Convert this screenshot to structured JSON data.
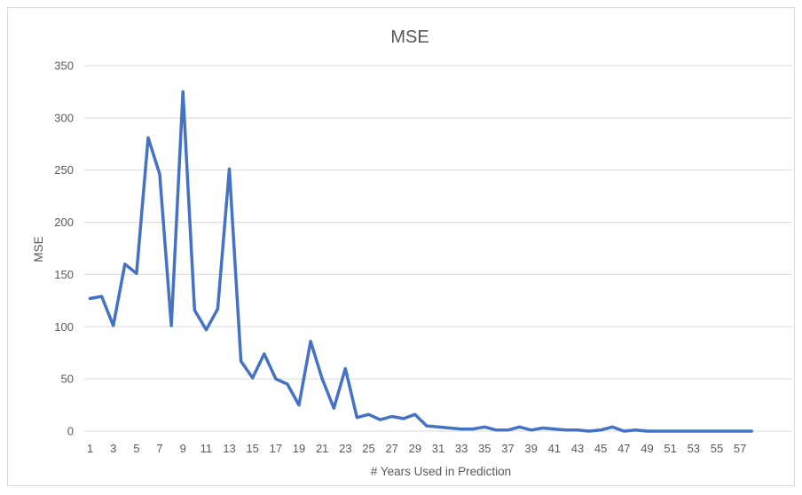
{
  "chart_data": {
    "type": "line",
    "title": "MSE",
    "xlabel": "# Years Used in Prediction",
    "ylabel": "MSE",
    "ylim": [
      0,
      350
    ],
    "yticks": [
      0,
      50,
      100,
      150,
      200,
      250,
      300,
      350
    ],
    "xrange": [
      1,
      61
    ],
    "xticks": [
      1,
      3,
      5,
      7,
      9,
      11,
      13,
      15,
      17,
      19,
      21,
      23,
      25,
      27,
      29,
      31,
      33,
      35,
      37,
      39,
      41,
      43,
      45,
      47,
      49,
      51,
      53,
      55,
      57
    ],
    "grid": true,
    "legend": "none",
    "series": [
      {
        "color": "#4472c4",
        "x": [
          1,
          2,
          3,
          4,
          5,
          6,
          7,
          8,
          9,
          10,
          11,
          12,
          13,
          14,
          15,
          16,
          17,
          18,
          19,
          20,
          21,
          22,
          23,
          24,
          25,
          26,
          27,
          28,
          29,
          30,
          31,
          32,
          33,
          34,
          35,
          36,
          37,
          38,
          39,
          40,
          41,
          42,
          43,
          44,
          45,
          46,
          47,
          48,
          49,
          50,
          51,
          52,
          53,
          54,
          55,
          56,
          57,
          58
        ],
        "values": [
          127,
          129,
          101,
          160,
          151,
          281,
          246,
          101,
          325,
          116,
          97,
          117,
          251,
          67,
          51,
          74,
          50,
          45,
          25,
          86,
          50,
          22,
          60,
          13,
          16,
          11,
          14,
          12,
          16,
          5,
          4,
          3,
          2,
          2,
          4,
          1,
          1,
          4,
          1,
          3,
          2,
          1,
          1,
          0,
          1,
          4,
          0,
          1,
          0,
          0,
          0,
          0,
          0,
          0,
          0,
          0,
          0,
          0
        ]
      }
    ]
  }
}
